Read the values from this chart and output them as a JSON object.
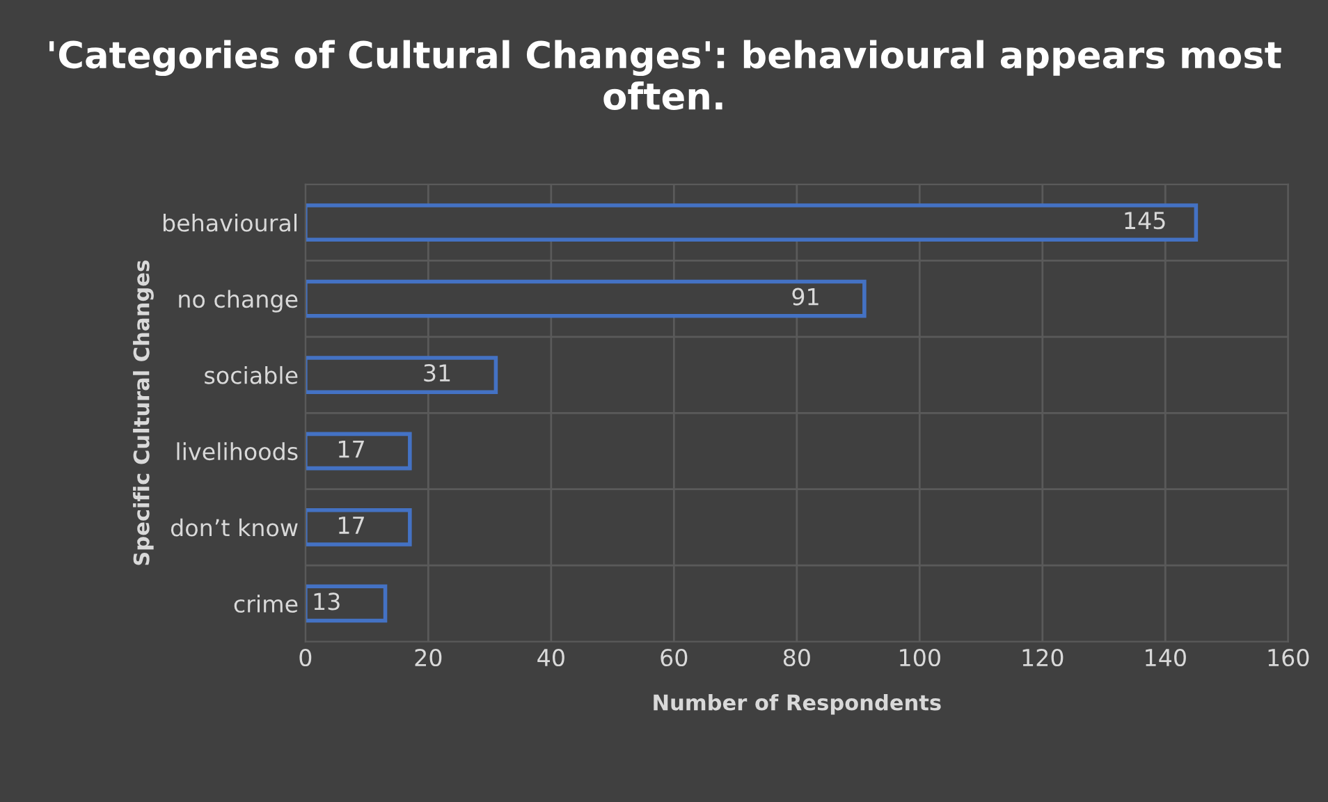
{
  "chart_data": {
    "type": "bar",
    "orientation": "horizontal",
    "title": "'Categories of Cultural Changes': behavioural appears most often.",
    "xlabel": "Number of Respondents",
    "ylabel": "Specific Cultural Changes",
    "categories": [
      "behavioural",
      "no change",
      "sociable",
      "livelihoods",
      "don’t know",
      "crime"
    ],
    "values": [
      145,
      91,
      31,
      17,
      17,
      13
    ],
    "color": "#4472c4",
    "xlim": [
      0,
      160
    ],
    "xticks": [
      0,
      20,
      40,
      60,
      80,
      100,
      120,
      140,
      160
    ],
    "grid": true,
    "data_labels": true,
    "legend": false
  }
}
